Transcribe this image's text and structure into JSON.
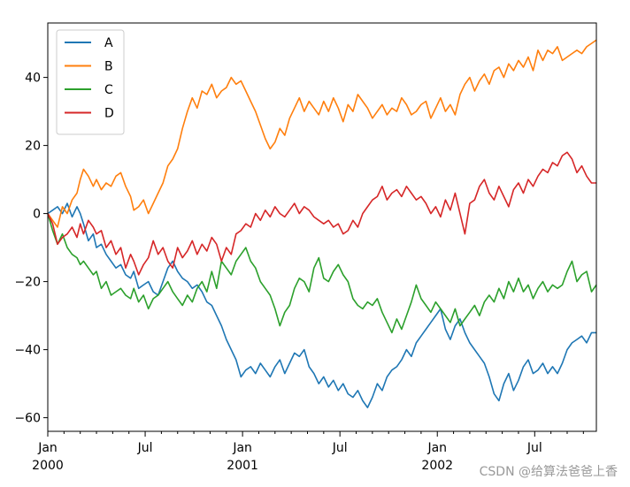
{
  "chart_data": {
    "type": "line",
    "title": "",
    "xlabel": "",
    "ylabel": "",
    "xlim": [
      0,
      33.8
    ],
    "ylim": [
      -64,
      56
    ],
    "yticks": [
      -60,
      -40,
      -20,
      0,
      20,
      40
    ],
    "ytick_labels": [
      "-60",
      "-40",
      "-20",
      "0",
      "20",
      "40"
    ],
    "xticks": [
      {
        "pos": 0,
        "label": "Jan",
        "year": "2000"
      },
      {
        "pos": 6,
        "label": "Jul",
        "year": ""
      },
      {
        "pos": 12,
        "label": "Jan",
        "year": "2001"
      },
      {
        "pos": 18,
        "label": "Jul",
        "year": ""
      },
      {
        "pos": 24,
        "label": "Jan",
        "year": "2002"
      },
      {
        "pos": 30,
        "label": "Jul",
        "year": ""
      }
    ],
    "x_unit": "months since Jan 2000",
    "legend": {
      "placement": "upper-left"
    },
    "series": [
      {
        "name": "A",
        "color": "#1f77b4",
        "x": [
          0,
          0.3,
          0.6,
          0.9,
          1.2,
          1.5,
          1.8,
          2.0,
          2.2,
          2.5,
          2.8,
          3.0,
          3.3,
          3.6,
          3.9,
          4.2,
          4.5,
          4.8,
          5.1,
          5.3,
          5.6,
          5.9,
          6.2,
          6.5,
          6.8,
          7.1,
          7.4,
          7.7,
          8.0,
          8.3,
          8.6,
          8.9,
          9.2,
          9.5,
          9.8,
          10.1,
          10.4,
          10.7,
          11.0,
          11.3,
          11.6,
          11.9,
          12.2,
          12.5,
          12.8,
          13.1,
          13.4,
          13.7,
          14.0,
          14.3,
          14.6,
          14.9,
          15.2,
          15.5,
          15.8,
          16.1,
          16.4,
          16.7,
          17.0,
          17.3,
          17.6,
          17.9,
          18.2,
          18.5,
          18.8,
          19.1,
          19.4,
          19.7,
          20.0,
          20.3,
          20.6,
          20.9,
          21.2,
          21.5,
          21.8,
          22.1,
          22.4,
          22.7,
          23.0,
          23.3,
          23.6,
          23.9,
          24.2,
          24.5,
          24.8,
          25.1,
          25.4,
          25.7,
          26.0,
          26.3,
          26.6,
          26.9,
          27.2,
          27.5,
          27.8,
          28.1,
          28.4,
          28.7,
          29.0,
          29.3,
          29.6,
          29.9,
          30.2,
          30.5,
          30.8,
          31.1,
          31.4,
          31.7,
          32.0,
          32.3,
          32.6,
          32.9,
          33.2,
          33.5,
          33.8
        ],
        "values": [
          0,
          1,
          2,
          0,
          3,
          -1,
          2,
          0,
          -3,
          -8,
          -6,
          -10,
          -9,
          -12,
          -14,
          -16,
          -15,
          -18,
          -19,
          -17,
          -22,
          -21,
          -20,
          -23,
          -24,
          -20,
          -16,
          -14,
          -17,
          -19,
          -20,
          -22,
          -21,
          -23,
          -26,
          -27,
          -30,
          -33,
          -37,
          -40,
          -43,
          -48,
          -46,
          -45,
          -47,
          -44,
          -46,
          -48,
          -45,
          -43,
          -47,
          -44,
          -41,
          -42,
          -40,
          -45,
          -47,
          -50,
          -48,
          -51,
          -49,
          -52,
          -50,
          -53,
          -54,
          -52,
          -55,
          -57,
          -54,
          -50,
          -52,
          -48,
          -46,
          -45,
          -43,
          -40,
          -42,
          -38,
          -36,
          -34,
          -32,
          -30,
          -28,
          -34,
          -37,
          -33,
          -31,
          -35,
          -38,
          -40,
          -42,
          -44,
          -48,
          -53,
          -55,
          -50,
          -47,
          -52,
          -49,
          -45,
          -43,
          -47,
          -46,
          -44,
          -47,
          -45,
          -47,
          -44,
          -40,
          -38,
          -37,
          -36,
          -38,
          -35,
          -35
        ]
      },
      {
        "name": "B",
        "color": "#ff7f0e",
        "x": [
          0,
          0.3,
          0.6,
          0.9,
          1.2,
          1.5,
          1.8,
          2.0,
          2.2,
          2.5,
          2.8,
          3.0,
          3.3,
          3.6,
          3.9,
          4.2,
          4.5,
          4.8,
          5.1,
          5.3,
          5.6,
          5.9,
          6.2,
          6.5,
          6.8,
          7.1,
          7.4,
          7.7,
          8.0,
          8.3,
          8.6,
          8.9,
          9.2,
          9.5,
          9.8,
          10.1,
          10.4,
          10.7,
          11.0,
          11.3,
          11.6,
          11.9,
          12.2,
          12.5,
          12.8,
          13.1,
          13.4,
          13.7,
          14.0,
          14.3,
          14.6,
          14.9,
          15.2,
          15.5,
          15.8,
          16.1,
          16.4,
          16.7,
          17.0,
          17.3,
          17.6,
          17.9,
          18.2,
          18.5,
          18.8,
          19.1,
          19.4,
          19.7,
          20.0,
          20.3,
          20.6,
          20.9,
          21.2,
          21.5,
          21.8,
          22.1,
          22.4,
          22.7,
          23.0,
          23.3,
          23.6,
          23.9,
          24.2,
          24.5,
          24.8,
          25.1,
          25.4,
          25.7,
          26.0,
          26.3,
          26.6,
          26.9,
          27.2,
          27.5,
          27.8,
          28.1,
          28.4,
          28.7,
          29.0,
          29.3,
          29.6,
          29.9,
          30.2,
          30.5,
          30.8,
          31.1,
          31.4,
          31.7,
          32.0,
          32.3,
          32.6,
          32.9,
          33.2,
          33.5,
          33.8
        ],
        "values": [
          0,
          -2,
          -4,
          2,
          0,
          4,
          6,
          10,
          13,
          11,
          8,
          10,
          7,
          9,
          8,
          11,
          12,
          8,
          5,
          1,
          2,
          4,
          0,
          3,
          6,
          9,
          14,
          16,
          19,
          25,
          30,
          34,
          31,
          36,
          35,
          38,
          34,
          36,
          37,
          40,
          38,
          39,
          36,
          33,
          30,
          26,
          22,
          19,
          21,
          25,
          23,
          28,
          31,
          34,
          30,
          33,
          31,
          29,
          33,
          30,
          34,
          31,
          27,
          32,
          30,
          35,
          33,
          31,
          28,
          30,
          32,
          29,
          31,
          30,
          34,
          32,
          29,
          30,
          32,
          33,
          28,
          31,
          34,
          30,
          32,
          29,
          35,
          38,
          40,
          36,
          39,
          41,
          38,
          42,
          43,
          40,
          44,
          42,
          45,
          43,
          46,
          42,
          48,
          45,
          48,
          47,
          49,
          45,
          46,
          47,
          48,
          47,
          49,
          50,
          51
        ]
      },
      {
        "name": "C",
        "color": "#2ca02c",
        "x": [
          0,
          0.3,
          0.6,
          0.9,
          1.2,
          1.5,
          1.8,
          2.0,
          2.2,
          2.5,
          2.8,
          3.0,
          3.3,
          3.6,
          3.9,
          4.2,
          4.5,
          4.8,
          5.1,
          5.3,
          5.6,
          5.9,
          6.2,
          6.5,
          6.8,
          7.1,
          7.4,
          7.7,
          8.0,
          8.3,
          8.6,
          8.9,
          9.2,
          9.5,
          9.8,
          10.1,
          10.4,
          10.7,
          11.0,
          11.3,
          11.6,
          11.9,
          12.2,
          12.5,
          12.8,
          13.1,
          13.4,
          13.7,
          14.0,
          14.3,
          14.6,
          14.9,
          15.2,
          15.5,
          15.8,
          16.1,
          16.4,
          16.7,
          17.0,
          17.3,
          17.6,
          17.9,
          18.2,
          18.5,
          18.8,
          19.1,
          19.4,
          19.7,
          20.0,
          20.3,
          20.6,
          20.9,
          21.2,
          21.5,
          21.8,
          22.1,
          22.4,
          22.7,
          23.0,
          23.3,
          23.6,
          23.9,
          24.2,
          24.5,
          24.8,
          25.1,
          25.4,
          25.7,
          26.0,
          26.3,
          26.6,
          26.9,
          27.2,
          27.5,
          27.8,
          28.1,
          28.4,
          28.7,
          29.0,
          29.3,
          29.6,
          29.9,
          30.2,
          30.5,
          30.8,
          31.1,
          31.4,
          31.7,
          32.0,
          32.3,
          32.6,
          32.9,
          33.2,
          33.5,
          33.8
        ],
        "values": [
          0,
          -5,
          -9,
          -6,
          -10,
          -12,
          -13,
          -15,
          -14,
          -16,
          -18,
          -17,
          -22,
          -20,
          -24,
          -23,
          -22,
          -24,
          -25,
          -22,
          -26,
          -24,
          -28,
          -25,
          -24,
          -22,
          -20,
          -23,
          -25,
          -27,
          -24,
          -26,
          -22,
          -20,
          -23,
          -17,
          -22,
          -14,
          -16,
          -18,
          -14,
          -12,
          -10,
          -14,
          -16,
          -20,
          -22,
          -24,
          -28,
          -33,
          -29,
          -27,
          -22,
          -19,
          -20,
          -23,
          -16,
          -13,
          -19,
          -20,
          -17,
          -15,
          -18,
          -20,
          -25,
          -27,
          -28,
          -26,
          -27,
          -25,
          -29,
          -32,
          -35,
          -31,
          -34,
          -30,
          -26,
          -21,
          -25,
          -27,
          -29,
          -26,
          -28,
          -30,
          -32,
          -28,
          -33,
          -31,
          -29,
          -27,
          -30,
          -26,
          -24,
          -26,
          -22,
          -25,
          -20,
          -23,
          -19,
          -23,
          -21,
          -25,
          -22,
          -20,
          -23,
          -21,
          -22,
          -21,
          -17,
          -14,
          -20,
          -18,
          -17,
          -23,
          -21
        ]
      },
      {
        "name": "D",
        "color": "#d62728",
        "x": [
          0,
          0.3,
          0.6,
          0.9,
          1.2,
          1.5,
          1.8,
          2.0,
          2.2,
          2.5,
          2.8,
          3.0,
          3.3,
          3.6,
          3.9,
          4.2,
          4.5,
          4.8,
          5.1,
          5.3,
          5.6,
          5.9,
          6.2,
          6.5,
          6.8,
          7.1,
          7.4,
          7.7,
          8.0,
          8.3,
          8.6,
          8.9,
          9.2,
          9.5,
          9.8,
          10.1,
          10.4,
          10.7,
          11.0,
          11.3,
          11.6,
          11.9,
          12.2,
          12.5,
          12.8,
          13.1,
          13.4,
          13.7,
          14.0,
          14.3,
          14.6,
          14.9,
          15.2,
          15.5,
          15.8,
          16.1,
          16.4,
          16.7,
          17.0,
          17.3,
          17.6,
          17.9,
          18.2,
          18.5,
          18.8,
          19.1,
          19.4,
          19.7,
          20.0,
          20.3,
          20.6,
          20.9,
          21.2,
          21.5,
          21.8,
          22.1,
          22.4,
          22.7,
          23.0,
          23.3,
          23.6,
          23.9,
          24.2,
          24.5,
          24.8,
          25.1,
          25.4,
          25.7,
          26.0,
          26.3,
          26.6,
          26.9,
          27.2,
          27.5,
          27.8,
          28.1,
          28.4,
          28.7,
          29.0,
          29.3,
          29.6,
          29.9,
          30.2,
          30.5,
          30.8,
          31.1,
          31.4,
          31.7,
          32.0,
          32.3,
          32.6,
          32.9,
          33.2,
          33.5,
          33.8
        ],
        "values": [
          0,
          -3,
          -9,
          -7,
          -6,
          -4,
          -7,
          -3,
          -6,
          -2,
          -4,
          -6,
          -5,
          -10,
          -8,
          -12,
          -10,
          -16,
          -12,
          -14,
          -18,
          -15,
          -13,
          -8,
          -12,
          -10,
          -14,
          -16,
          -10,
          -13,
          -11,
          -8,
          -12,
          -9,
          -11,
          -7,
          -9,
          -14,
          -10,
          -12,
          -6,
          -5,
          -3,
          -4,
          0,
          -2,
          1,
          -1,
          2,
          0,
          -1,
          1,
          3,
          0,
          2,
          1,
          -1,
          -2,
          -3,
          -2,
          -4,
          -3,
          -6,
          -5,
          -2,
          -4,
          0,
          2,
          4,
          5,
          8,
          4,
          6,
          7,
          5,
          8,
          6,
          4,
          5,
          3,
          0,
          2,
          -1,
          4,
          1,
          6,
          0,
          -6,
          3,
          4,
          8,
          10,
          6,
          4,
          8,
          5,
          2,
          7,
          9,
          6,
          10,
          8,
          11,
          13,
          12,
          15,
          14,
          17,
          18,
          16,
          12,
          14,
          11,
          9,
          9
        ]
      }
    ]
  },
  "watermark": "CSDN @给算法爸爸上香"
}
